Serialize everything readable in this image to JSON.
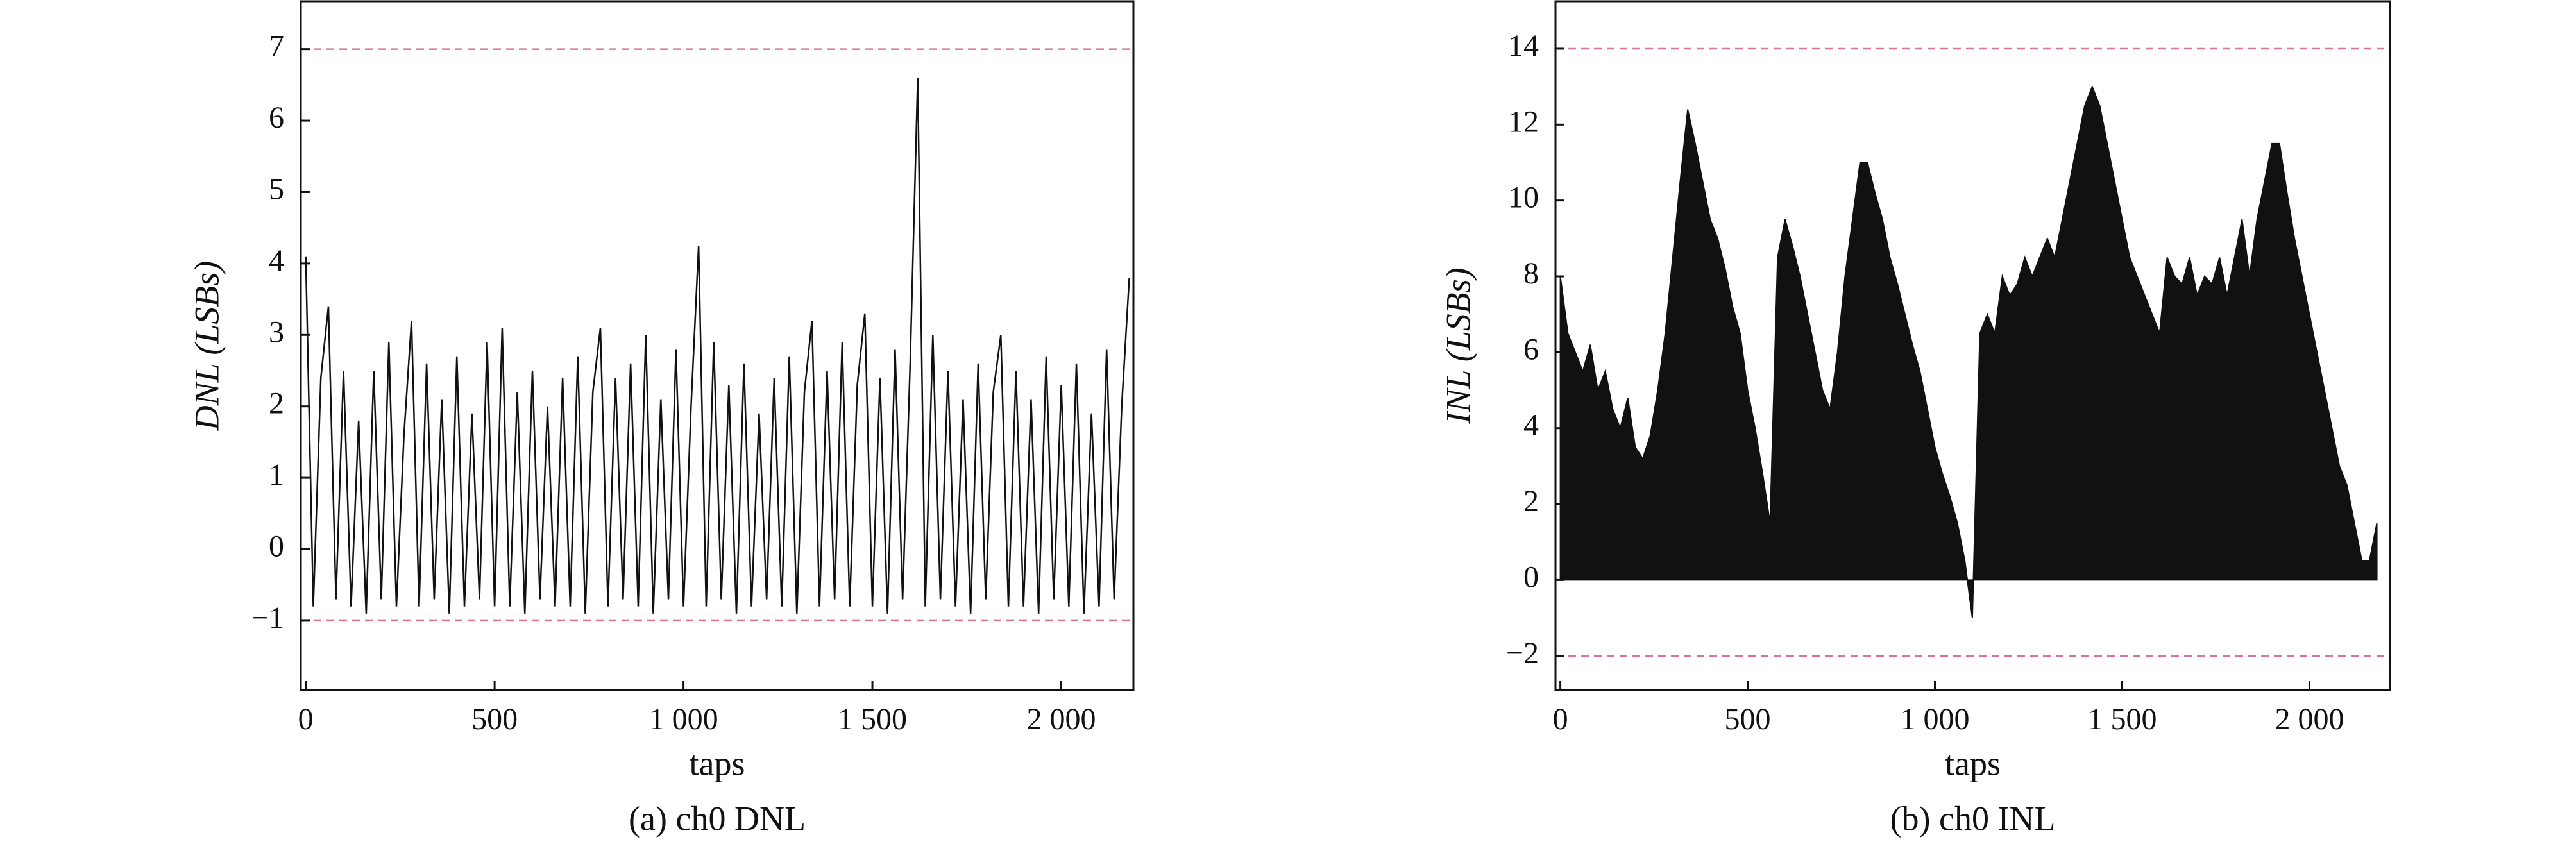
{
  "chart_data": [
    {
      "type": "line",
      "caption": "(a) ch0 DNL",
      "x_label": "taps",
      "y_label": "DNL (LSBs)",
      "color": "#111111",
      "reference_color": "#d9739b",
      "reference_lines": [
        7,
        -1
      ],
      "xlim": [
        -13,
        2191
      ],
      "ylim": [
        -1.97,
        7.67
      ],
      "xticks": [
        0,
        500,
        {
          "value": 1000,
          "label": "1 000"
        },
        {
          "value": 1500,
          "label": "1 500"
        },
        {
          "value": 2000,
          "label": "2 000"
        }
      ],
      "yticks": [
        {
          "value": -1,
          "label": "−1"
        },
        0,
        1,
        2,
        3,
        4,
        5,
        6,
        7
      ],
      "x": [
        0,
        20,
        40,
        60,
        80,
        100,
        120,
        140,
        160,
        180,
        200,
        220,
        240,
        260,
        280,
        300,
        320,
        340,
        360,
        380,
        400,
        420,
        440,
        460,
        480,
        500,
        520,
        540,
        560,
        580,
        600,
        620,
        640,
        660,
        680,
        700,
        720,
        740,
        760,
        780,
        800,
        820,
        840,
        860,
        880,
        900,
        920,
        940,
        960,
        980,
        1000,
        1020,
        1040,
        1060,
        1080,
        1100,
        1120,
        1140,
        1160,
        1180,
        1200,
        1220,
        1240,
        1260,
        1280,
        1300,
        1320,
        1340,
        1360,
        1380,
        1400,
        1420,
        1440,
        1460,
        1480,
        1500,
        1520,
        1540,
        1560,
        1580,
        1600,
        1620,
        1640,
        1660,
        1680,
        1700,
        1720,
        1740,
        1760,
        1780,
        1800,
        1820,
        1840,
        1860,
        1880,
        1900,
        1920,
        1940,
        1960,
        1980,
        2000,
        2020,
        2040,
        2060,
        2080,
        2100,
        2120,
        2140,
        2160,
        2180
      ],
      "values": [
        4.1,
        -0.8,
        2.4,
        3.4,
        -0.7,
        2.5,
        -0.8,
        1.8,
        -0.9,
        2.5,
        -0.7,
        2.9,
        -0.8,
        1.6,
        3.2,
        -0.8,
        2.6,
        -0.7,
        2.1,
        -0.9,
        2.7,
        -0.8,
        1.9,
        -0.7,
        2.9,
        -0.8,
        3.1,
        -0.8,
        2.2,
        -0.9,
        2.5,
        -0.7,
        2.0,
        -0.8,
        2.4,
        -0.8,
        2.7,
        -0.9,
        2.2,
        3.1,
        -0.8,
        2.4,
        -0.7,
        2.6,
        -0.8,
        3.0,
        -0.9,
        2.1,
        -0.7,
        2.8,
        -0.8,
        2.0,
        4.25,
        -0.8,
        2.9,
        -0.7,
        2.3,
        -0.9,
        2.6,
        -0.8,
        1.9,
        -0.7,
        2.4,
        -0.8,
        2.7,
        -0.9,
        2.2,
        3.2,
        -0.8,
        2.5,
        -0.7,
        2.9,
        -0.8,
        2.3,
        3.3,
        -0.8,
        2.4,
        -0.9,
        2.8,
        -0.7,
        2.6,
        6.6,
        -0.8,
        3.0,
        -0.7,
        2.5,
        -0.8,
        2.1,
        -0.9,
        2.6,
        -0.7,
        2.2,
        3.0,
        -0.8,
        2.5,
        -0.8,
        2.1,
        -0.9,
        2.7,
        -0.7,
        2.3,
        -0.8,
        2.6,
        -0.9,
        1.9,
        -0.8,
        2.8,
        -0.7,
        2.0,
        3.8
      ]
    },
    {
      "type": "area",
      "caption": "(b) ch0 INL",
      "x_label": "taps",
      "y_label": "INL (LSBs)",
      "color": "#111111",
      "reference_color": "#d9739b",
      "reference_lines": [
        14,
        -2
      ],
      "xlim": [
        -13,
        2215
      ],
      "ylim": [
        -2.9,
        15.25
      ],
      "xticks": [
        0,
        500,
        {
          "value": 1000,
          "label": "1 000"
        },
        {
          "value": 1500,
          "label": "1 500"
        },
        {
          "value": 2000,
          "label": "2 000"
        }
      ],
      "yticks": [
        {
          "value": -2,
          "label": "−2"
        },
        0,
        2,
        4,
        6,
        8,
        10,
        12,
        14
      ],
      "x": [
        0,
        20,
        40,
        60,
        80,
        100,
        120,
        140,
        160,
        180,
        200,
        220,
        240,
        260,
        280,
        300,
        320,
        340,
        360,
        380,
        400,
        420,
        440,
        460,
        480,
        500,
        520,
        540,
        560,
        580,
        600,
        620,
        640,
        660,
        680,
        700,
        720,
        740,
        760,
        780,
        800,
        820,
        840,
        860,
        880,
        900,
        920,
        940,
        960,
        980,
        1000,
        1020,
        1040,
        1060,
        1080,
        1100,
        1120,
        1140,
        1160,
        1180,
        1200,
        1220,
        1240,
        1260,
        1280,
        1300,
        1320,
        1340,
        1360,
        1380,
        1400,
        1420,
        1440,
        1460,
        1480,
        1500,
        1520,
        1540,
        1560,
        1580,
        1600,
        1620,
        1640,
        1660,
        1680,
        1700,
        1720,
        1740,
        1760,
        1780,
        1800,
        1820,
        1840,
        1860,
        1880,
        1900,
        1920,
        1940,
        1960,
        1980,
        2000,
        2020,
        2040,
        2060,
        2080,
        2100,
        2120,
        2140,
        2160,
        2180
      ],
      "values": [
        8,
        6.5,
        6,
        5.5,
        6.2,
        5,
        5.5,
        4.5,
        4,
        4.8,
        3.5,
        3.2,
        3.8,
        5,
        6.5,
        8.5,
        10.5,
        12.4,
        11.5,
        10.5,
        9.5,
        9,
        8.2,
        7.2,
        6.5,
        5,
        4,
        2.8,
        1.5,
        8.5,
        9.5,
        8.8,
        8,
        7,
        6,
        5,
        4.5,
        6,
        8,
        9.5,
        11,
        11,
        10.2,
        9.5,
        8.5,
        7.8,
        7,
        6.2,
        5.5,
        4.5,
        3.5,
        2.8,
        2.2,
        1.5,
        0.5,
        -1,
        6.5,
        7,
        6.5,
        8,
        7.5,
        7.8,
        8.5,
        8,
        8.5,
        9,
        8.5,
        9.5,
        10.5,
        11.5,
        12.5,
        13,
        12.5,
        11.5,
        10.5,
        9.5,
        8.5,
        8,
        7.5,
        7,
        6.5,
        8.5,
        8,
        7.8,
        8.5,
        7.5,
        8,
        7.8,
        8.5,
        7.5,
        8.5,
        9.5,
        8,
        9.5,
        10.5,
        11.5,
        11.5,
        10.2,
        9,
        8,
        7,
        6,
        5,
        4,
        3,
        2.5,
        1.5,
        0.5,
        0.5,
        1.5
      ]
    }
  ]
}
